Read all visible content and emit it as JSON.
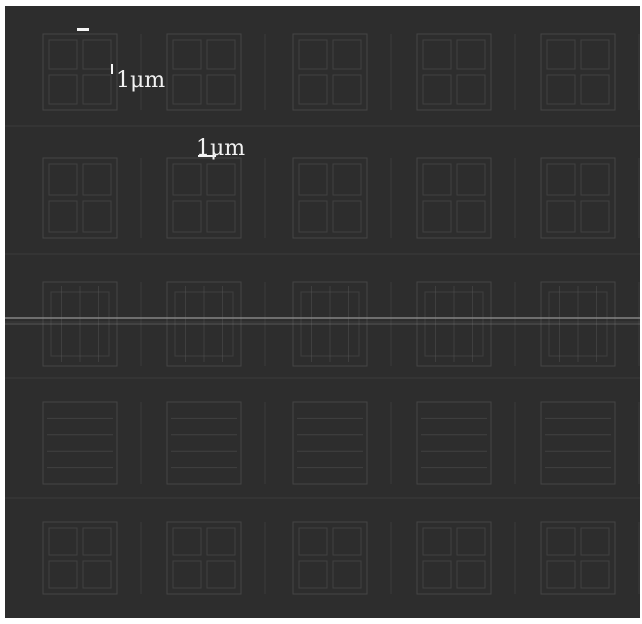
{
  "image": {
    "background_color": "#2d2d2d",
    "pattern_color": "#5a5a5a",
    "highlight_color": "#8a8a8a"
  },
  "scale_bars": {
    "label_1": "1μm",
    "label_2": "1μm"
  }
}
